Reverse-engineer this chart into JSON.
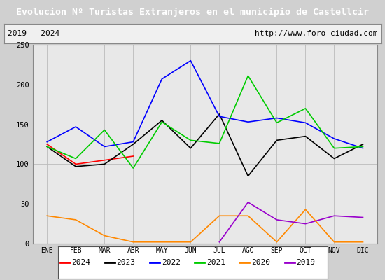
{
  "title": "Evolucion Nº Turistas Extranjeros en el municipio de Castellcir",
  "subtitle_left": "2019 - 2024",
  "subtitle_right": "http://www.foro-ciudad.com",
  "title_bg_color": "#4a7cc7",
  "title_text_color": "#ffffff",
  "plot_bg_color": "#e8e8e8",
  "outer_bg_color": "#d0d0d0",
  "months": [
    "ENE",
    "FEB",
    "MAR",
    "ABR",
    "MAY",
    "JUN",
    "JUL",
    "AGO",
    "SEP",
    "OCT",
    "NOV",
    "DIC"
  ],
  "ylim": [
    0,
    250
  ],
  "yticks": [
    0,
    50,
    100,
    150,
    200,
    250
  ],
  "series": {
    "2024": {
      "color": "#ff0000",
      "data": [
        125,
        100,
        105,
        110,
        null,
        null,
        null,
        null,
        null,
        null,
        null,
        null
      ]
    },
    "2023": {
      "color": "#000000",
      "data": [
        122,
        97,
        100,
        125,
        155,
        120,
        163,
        85,
        130,
        135,
        107,
        125
      ]
    },
    "2022": {
      "color": "#0000ff",
      "data": [
        128,
        147,
        122,
        128,
        207,
        230,
        160,
        153,
        158,
        152,
        132,
        120
      ]
    },
    "2021": {
      "color": "#00cc00",
      "data": [
        122,
        107,
        143,
        95,
        153,
        130,
        126,
        211,
        152,
        170,
        120,
        122
      ]
    },
    "2020": {
      "color": "#ff8800",
      "data": [
        35,
        30,
        10,
        2,
        2,
        2,
        35,
        35,
        2,
        43,
        2,
        2
      ]
    },
    "2019": {
      "color": "#9900cc",
      "data": [
        null,
        null,
        null,
        null,
        null,
        null,
        2,
        52,
        30,
        25,
        35,
        33
      ]
    }
  },
  "legend_order": [
    "2024",
    "2023",
    "2022",
    "2021",
    "2020",
    "2019"
  ]
}
